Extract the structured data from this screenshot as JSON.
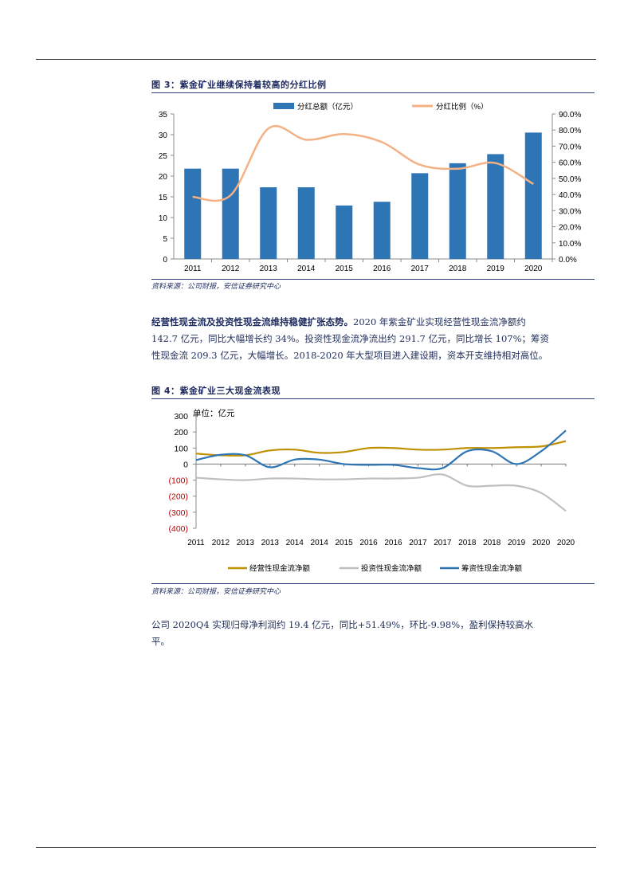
{
  "figure3": {
    "title": "图 3：紫金矿业继续保持着较高的分红比例",
    "source": "资料来源：公司财报，安信证券研究中心"
  },
  "paragraph1": {
    "bold": "经营性现金流及投资性现金流维持稳健扩张态势。",
    "line1": "2020 年紫金矿业实现经营性现金流净额约",
    "line2": "142.7 亿元，同比大幅增长约 34%。投资性现金流净流出约 291.7 亿元，同比增长 107%；筹资",
    "line3": "性现金流 209.3 亿元，大幅增长。2018-2020 年大型项目进入建设期，资本开支维持相对高位。"
  },
  "figure4": {
    "title": "图 4：紫金矿业三大现金流表现",
    "source": "资料来源：公司财报，安信证券研究中心"
  },
  "paragraph2": {
    "line1": "公司 2020Q4 实现归母净利润约 19.4 亿元，同比+51.49%，环比-9.98%，盈利保持较高水",
    "line2": "平。"
  },
  "chart_data": [
    {
      "type": "bar",
      "categories": [
        "2011",
        "2012",
        "2013",
        "2014",
        "2015",
        "2016",
        "2017",
        "2018",
        "2019",
        "2020"
      ],
      "series": [
        {
          "name": "分红总额（亿元）",
          "type": "bar",
          "axis": "left",
          "color": "#2e75b6",
          "values": [
            21.8,
            21.8,
            17.3,
            17.3,
            12.9,
            13.8,
            20.7,
            23.1,
            25.3,
            30.5
          ]
        },
        {
          "name": "分红比例（%）",
          "type": "line",
          "axis": "right",
          "color": "#f4b183",
          "values": [
            38.5,
            39.5,
            81.0,
            74.0,
            77.5,
            72.5,
            58.5,
            56.0,
            59.5,
            46.5
          ]
        }
      ],
      "ylim_left": [
        0,
        35
      ],
      "yticks_left": [
        "0",
        "5",
        "10",
        "15",
        "20",
        "25",
        "30",
        "35"
      ],
      "ylim_right": [
        0,
        90
      ],
      "yticks_right": [
        "0.0%",
        "10.0%",
        "20.0%",
        "30.0%",
        "40.0%",
        "50.0%",
        "60.0%",
        "70.0%",
        "80.0%",
        "90.0%"
      ],
      "legend_position": "top"
    },
    {
      "type": "line",
      "unit_label": "单位：亿元",
      "x": [
        "2011",
        "2012",
        "2013",
        "2013",
        "2014",
        "2014",
        "2015",
        "2016",
        "2016",
        "2017",
        "2017",
        "2018",
        "2018",
        "2019",
        "2020",
        "2020"
      ],
      "series": [
        {
          "name": "经营性现金流净额",
          "color": "#bf9000",
          "values": [
            65,
            55,
            55,
            85,
            90,
            70,
            75,
            100,
            100,
            90,
            90,
            100,
            100,
            105,
            110,
            143
          ]
        },
        {
          "name": "投资性现金流净额",
          "color": "#bfbfbf",
          "values": [
            -85,
            -95,
            -100,
            -90,
            -90,
            -95,
            -95,
            -90,
            -90,
            -85,
            -65,
            -135,
            -135,
            -135,
            -180,
            -292
          ]
        },
        {
          "name": "筹资性现金流净额",
          "color": "#2e75b6",
          "values": [
            25,
            58,
            55,
            -20,
            28,
            28,
            0,
            -5,
            -5,
            -25,
            -25,
            80,
            80,
            0,
            80,
            209
          ]
        }
      ],
      "ylim": [
        -400,
        300
      ],
      "yticks": [
        "300",
        "200",
        "100",
        "0",
        "(100)",
        "(200)",
        "(300)",
        "(400)"
      ],
      "negative_tick_color": "#c00000",
      "legend_position": "bottom"
    }
  ]
}
